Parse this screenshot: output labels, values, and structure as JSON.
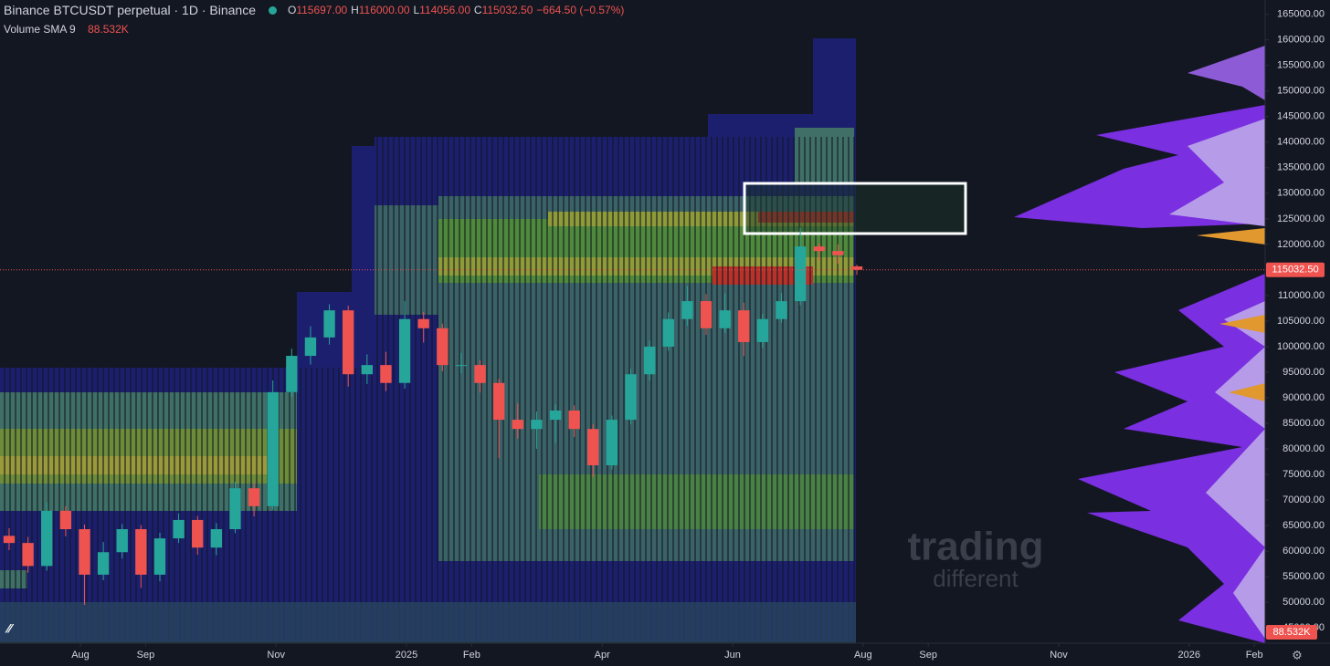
{
  "chart_data": {
    "type": "candlestick",
    "title": "Binance BTCUSDT perpetual · 1D · Binance",
    "ohlc": [
      {
        "key": "O",
        "value": 115697,
        "label": "115697.00"
      },
      {
        "key": "H",
        "value": 116000,
        "label": "116000.00"
      },
      {
        "key": "L",
        "value": 114056,
        "label": "114056.00"
      },
      {
        "key": "C",
        "value": 115032.5,
        "label": "115032.50"
      }
    ],
    "change": {
      "value": -664.5,
      "label": "−664.50 (−0.57%)"
    },
    "indicator": {
      "name": "Volume SMA 9",
      "value": 88532,
      "label": "88.532K"
    },
    "last_price": {
      "value": 115032.5,
      "label": "115032.50"
    },
    "watermark": [
      "trading",
      "different"
    ],
    "up_color": "#26a69a",
    "down_color": "#ef5350",
    "open": [
      63000,
      61600,
      57100,
      67900,
      64300,
      55400,
      59800,
      64300,
      55400,
      62500,
      66100,
      60700,
      64300,
      72300,
      68800,
      91100,
      98200,
      101800,
      107100,
      94600,
      96400,
      92900,
      105400,
      103600,
      96400,
      96400,
      92900,
      85700,
      83900,
      85700,
      87500,
      83900,
      76800,
      85700,
      94600,
      100000,
      105400,
      108900,
      103600,
      107100,
      100900,
      105400,
      108900,
      119600,
      118700,
      115697
    ],
    "high": [
      64500,
      62800,
      69500,
      68800,
      65200,
      61800,
      65300,
      65100,
      63600,
      67400,
      66900,
      65500,
      73600,
      73300,
      93400,
      99600,
      104000,
      108300,
      108000,
      98500,
      99000,
      108900,
      106800,
      104500,
      98800,
      97300,
      93700,
      88900,
      87300,
      88700,
      88500,
      84800,
      86500,
      95700,
      101200,
      106700,
      111900,
      110300,
      110400,
      108600,
      106400,
      110500,
      123200,
      120200,
      120000,
      116000
    ],
    "low": [
      60200,
      55800,
      56200,
      62900,
      49500,
      54300,
      58600,
      52800,
      54100,
      61600,
      59300,
      59200,
      63500,
      66800,
      68000,
      90200,
      96500,
      100400,
      92200,
      92700,
      91300,
      91800,
      100800,
      95200,
      94800,
      91000,
      78200,
      82000,
      80000,
      81200,
      82300,
      74500,
      76000,
      84800,
      93400,
      99200,
      104100,
      102300,
      102700,
      98200,
      99800,
      104700,
      108100,
      116900,
      116200,
      114056
    ],
    "close": [
      61600,
      57100,
      67900,
      64300,
      55400,
      59800,
      64300,
      55400,
      62500,
      66100,
      60700,
      64300,
      72300,
      68800,
      91100,
      98200,
      101800,
      107100,
      94600,
      96400,
      92900,
      105400,
      103600,
      96400,
      96400,
      92900,
      85700,
      83900,
      85700,
      87500,
      83900,
      76800,
      85700,
      94600,
      100000,
      105400,
      108900,
      103600,
      107100,
      100900,
      105400,
      108900,
      119600,
      118700,
      117900,
      115032.5
    ],
    "ylim": [
      42000,
      167800
    ],
    "yticks": [
      {
        "value": 45000,
        "label": "45000.00"
      },
      {
        "value": 50000,
        "label": "50000.00"
      },
      {
        "value": 55000,
        "label": "55000.00"
      },
      {
        "value": 60000,
        "label": "60000.00"
      },
      {
        "value": 65000,
        "label": "65000.00"
      },
      {
        "value": 70000,
        "label": "70000.00"
      },
      {
        "value": 75000,
        "label": "75000.00"
      },
      {
        "value": 80000,
        "label": "80000.00"
      },
      {
        "value": 85000,
        "label": "85000.00"
      },
      {
        "value": 90000,
        "label": "90000.00"
      },
      {
        "value": 95000,
        "label": "95000.00"
      },
      {
        "value": 100000,
        "label": "100000.00"
      },
      {
        "value": 105000,
        "label": "105000.00"
      },
      {
        "value": 110000,
        "label": "110000.00"
      },
      {
        "value": 115000,
        "label": "115000.00"
      },
      {
        "value": 120000,
        "label": "120000.00"
      },
      {
        "value": 125000,
        "label": "125000.00"
      },
      {
        "value": 130000,
        "label": "130000.00"
      },
      {
        "value": 135000,
        "label": "135000.00"
      },
      {
        "value": 140000,
        "label": "140000.00"
      },
      {
        "value": 145000,
        "label": "145000.00"
      },
      {
        "value": 150000,
        "label": "150000.00"
      },
      {
        "value": 155000,
        "label": "155000.00"
      },
      {
        "value": 160000,
        "label": "160000.00"
      },
      {
        "value": 165000,
        "label": "165000.00"
      }
    ],
    "xticks": [
      {
        "value": "2024-08",
        "label": "Aug"
      },
      {
        "value": "2024-09",
        "label": "Sep"
      },
      {
        "value": "2024-11",
        "label": "Nov"
      },
      {
        "value": "2025-01",
        "label": "2025"
      },
      {
        "value": "2025-02",
        "label": "Feb"
      },
      {
        "value": "2025-04",
        "label": "Apr"
      },
      {
        "value": "2025-06",
        "label": "Jun"
      },
      {
        "value": "2025-08",
        "label": "Aug"
      },
      {
        "value": "2025-09",
        "label": "Sep"
      },
      {
        "value": "2025-11",
        "label": "Nov"
      },
      {
        "value": "2026-01",
        "label": "2026"
      },
      {
        "value": "2026-02",
        "label": "Feb"
      }
    ]
  }
}
